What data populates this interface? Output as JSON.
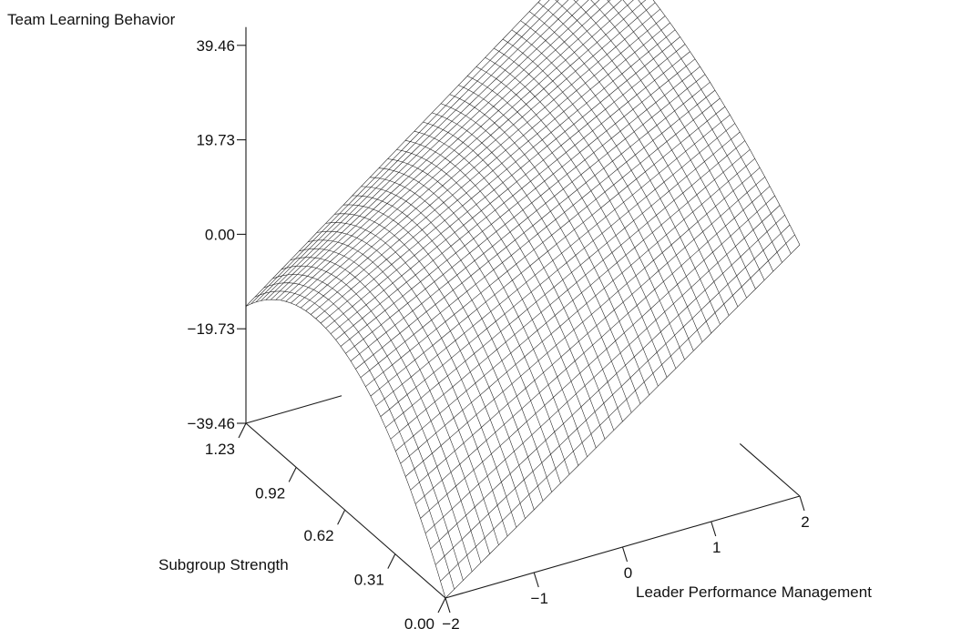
{
  "chart_data": {
    "type": "surface3d",
    "title": "",
    "zlabel": "Team Learning Behavior",
    "xlabel": "Leader Performance Management",
    "ylabel": "Subgroup Strength",
    "x_ticks": [
      "−2",
      "−1",
      "0",
      "1",
      "2"
    ],
    "x_tick_values": [
      -2,
      -1,
      0,
      1,
      2
    ],
    "y_ticks": [
      "0.00",
      "0.31",
      "0.62",
      "0.92",
      "1.23"
    ],
    "y_tick_values": [
      0.0,
      0.31,
      0.62,
      0.92,
      1.23
    ],
    "z_ticks": [
      "−39.46",
      "−19.73",
      "0.00",
      "19.73",
      "39.46"
    ],
    "z_tick_values": [
      -39.46,
      -19.73,
      0.0,
      19.73,
      39.46
    ],
    "xlim": [
      -2,
      2
    ],
    "ylim": [
      0.0,
      1.23
    ],
    "zlim": [
      -39.46,
      39.46
    ],
    "grid": false,
    "surface": {
      "x_steps": 40,
      "y_steps": 40,
      "corner_values": [
        {
          "x": -2,
          "y": 0.0,
          "z": -39.46
        },
        {
          "x": 2,
          "y": 0.0,
          "z": 13
        },
        {
          "x": -2,
          "y": 1.23,
          "z": -19.73
        },
        {
          "x": 2,
          "y": 1.23,
          "z": 39.46
        }
      ],
      "ridge_peak": {
        "y": 0.65,
        "z_at_x_minus2": -6
      }
    },
    "colors": {
      "mesh": "#1a1a1a",
      "axes": "#1a1a1a",
      "background": "#ffffff"
    }
  }
}
